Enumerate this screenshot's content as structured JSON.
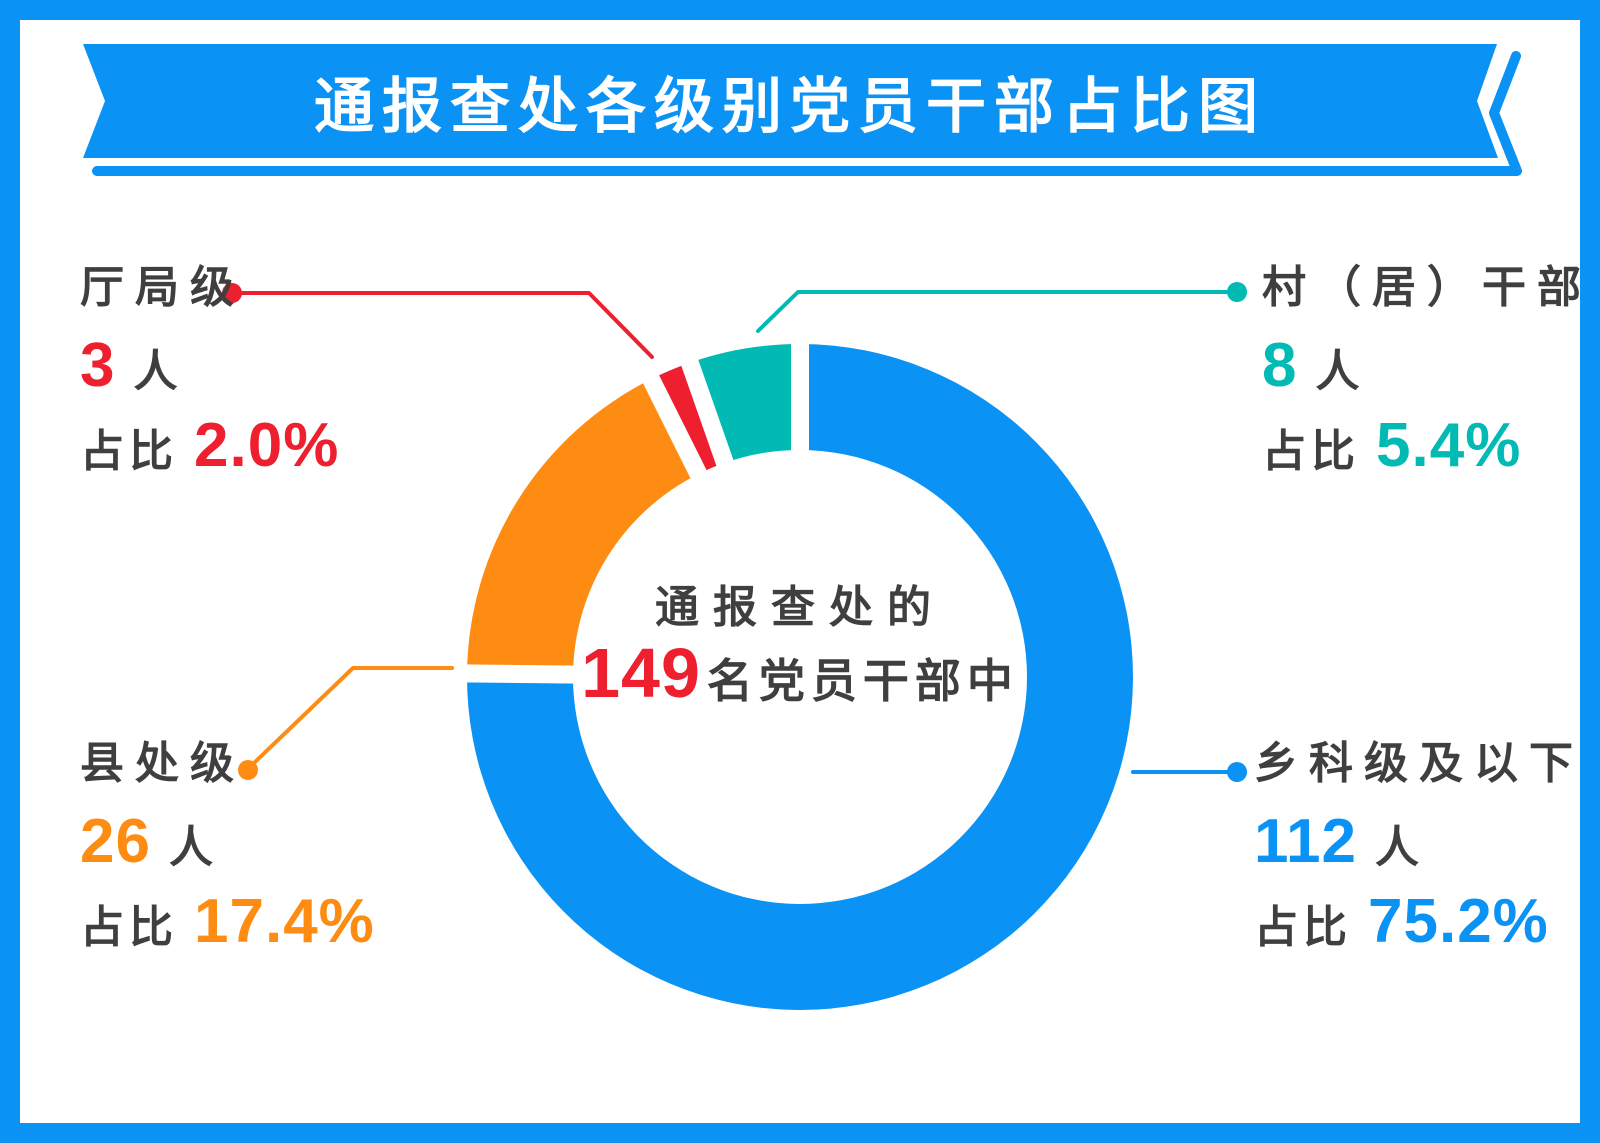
{
  "title_banner": {
    "text": "通报查处各级别党员干部占比图"
  },
  "center": {
    "line1": "通报查处的",
    "number": "149",
    "suffix": "名党员干部中"
  },
  "chart_data": {
    "type": "pie",
    "subtype": "donut",
    "title": "通报查处各级别党员干部占比图",
    "center_text": "通报查处的149名党员干部中",
    "total": 149,
    "start_angle_deg": 0,
    "direction": "clockwise",
    "legend_position": "callouts-around-donut",
    "labels": {
      "count_suffix": "人",
      "percent_prefix": "占比"
    },
    "slices": [
      {
        "label": "乡科级及以下",
        "value": 112,
        "percent": "75.2%",
        "color": "#0a92f5",
        "callout_position": "bottom-right"
      },
      {
        "label": "县处级",
        "value": 26,
        "percent": "17.4%",
        "color": "#fe8c12",
        "callout_position": "bottom-left"
      },
      {
        "label": "厅局级",
        "value": 3,
        "percent": "2.0%",
        "color": "#ee1f2f",
        "callout_position": "top-left"
      },
      {
        "label": "村（居）干部",
        "value": 8,
        "percent": "5.4%",
        "color": "#00bab3",
        "callout_position": "top-right"
      }
    ]
  },
  "theme": {
    "background": "#ffffff",
    "frame_and_banner_blue": "#0a92f5",
    "text_gray": "#3f3f3f",
    "separator_white": "#ffffff"
  }
}
